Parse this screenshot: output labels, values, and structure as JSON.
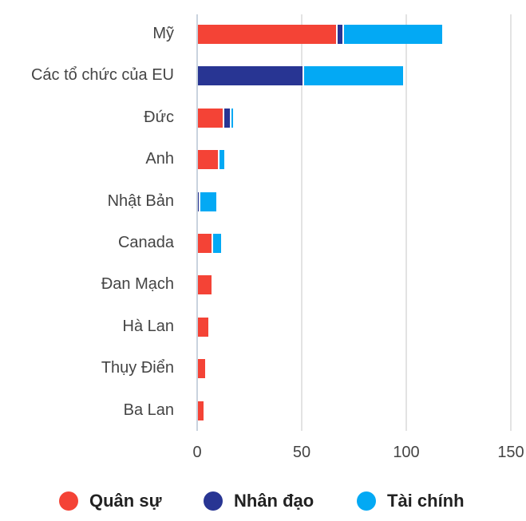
{
  "chart_data": {
    "type": "bar",
    "orientation": "horizontal",
    "stacked": true,
    "title": "",
    "xlabel": "",
    "ylabel": "",
    "xlim": [
      0,
      150
    ],
    "xticks": [
      "0",
      "50",
      "100",
      "150"
    ],
    "grid": true,
    "legend_position": "bottom",
    "categories": [
      "Mỹ",
      "Các tổ chức của EU",
      "Đức",
      "Anh",
      "Nhật Bản",
      "Canada",
      "Đan Mạch",
      "Hà Lan",
      "Thụy Điển",
      "Ba Lan"
    ],
    "series": [
      {
        "name": "Quân sự",
        "color": "#f44336",
        "values": [
          66.8,
          0,
          12.6,
          10.3,
          0,
          7.3,
          7.2,
          5.8,
          4.2,
          3.4
        ]
      },
      {
        "name": "Nhân đạo",
        "color": "#283593",
        "values": [
          3.1,
          50.8,
          3.3,
          0,
          1.1,
          0,
          0,
          0,
          0,
          0
        ]
      },
      {
        "name": "Tài chính",
        "color": "#03a9f4",
        "values": [
          47.5,
          48.2,
          1.5,
          3.1,
          8.5,
          4.6,
          0,
          0,
          0,
          0
        ]
      }
    ]
  },
  "legend": [
    {
      "label": "Quân sự",
      "color": "#f44336"
    },
    {
      "label": "Nhân đạo",
      "color": "#283593"
    },
    {
      "label": "Tài chính",
      "color": "#03a9f4"
    }
  ]
}
